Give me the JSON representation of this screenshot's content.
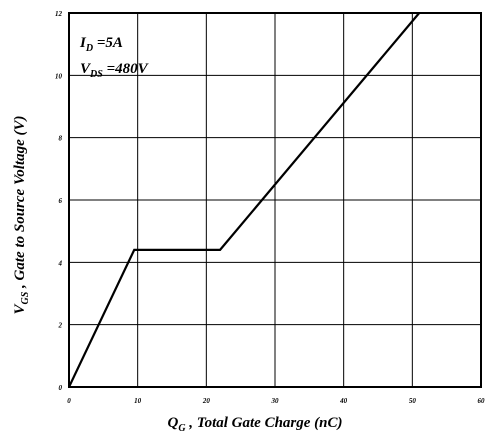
{
  "chart_data": {
    "type": "line",
    "xlabel": {
      "main": "Q",
      "sub": "G",
      "rest": " , Total Gate Charge (nC)"
    },
    "ylabel": {
      "main": "V",
      "sub": "GS",
      "rest": " , Gate to Source Voltage (V)"
    },
    "xlim": [
      0,
      60
    ],
    "ylim": [
      0,
      12
    ],
    "x_ticks": [
      0,
      10,
      20,
      30,
      40,
      50,
      60
    ],
    "y_ticks": [
      0,
      2,
      4,
      6,
      8,
      10,
      12
    ],
    "grid": true,
    "series": [
      {
        "x": [
          0,
          9.5,
          22,
          51
        ],
        "y": [
          0,
          4.4,
          4.4,
          12
        ]
      }
    ],
    "annotations": [
      {
        "main": "I",
        "sub": "D",
        "rest": " =5A"
      },
      {
        "main": "V",
        "sub": "DS",
        "rest": " =480V"
      }
    ]
  }
}
